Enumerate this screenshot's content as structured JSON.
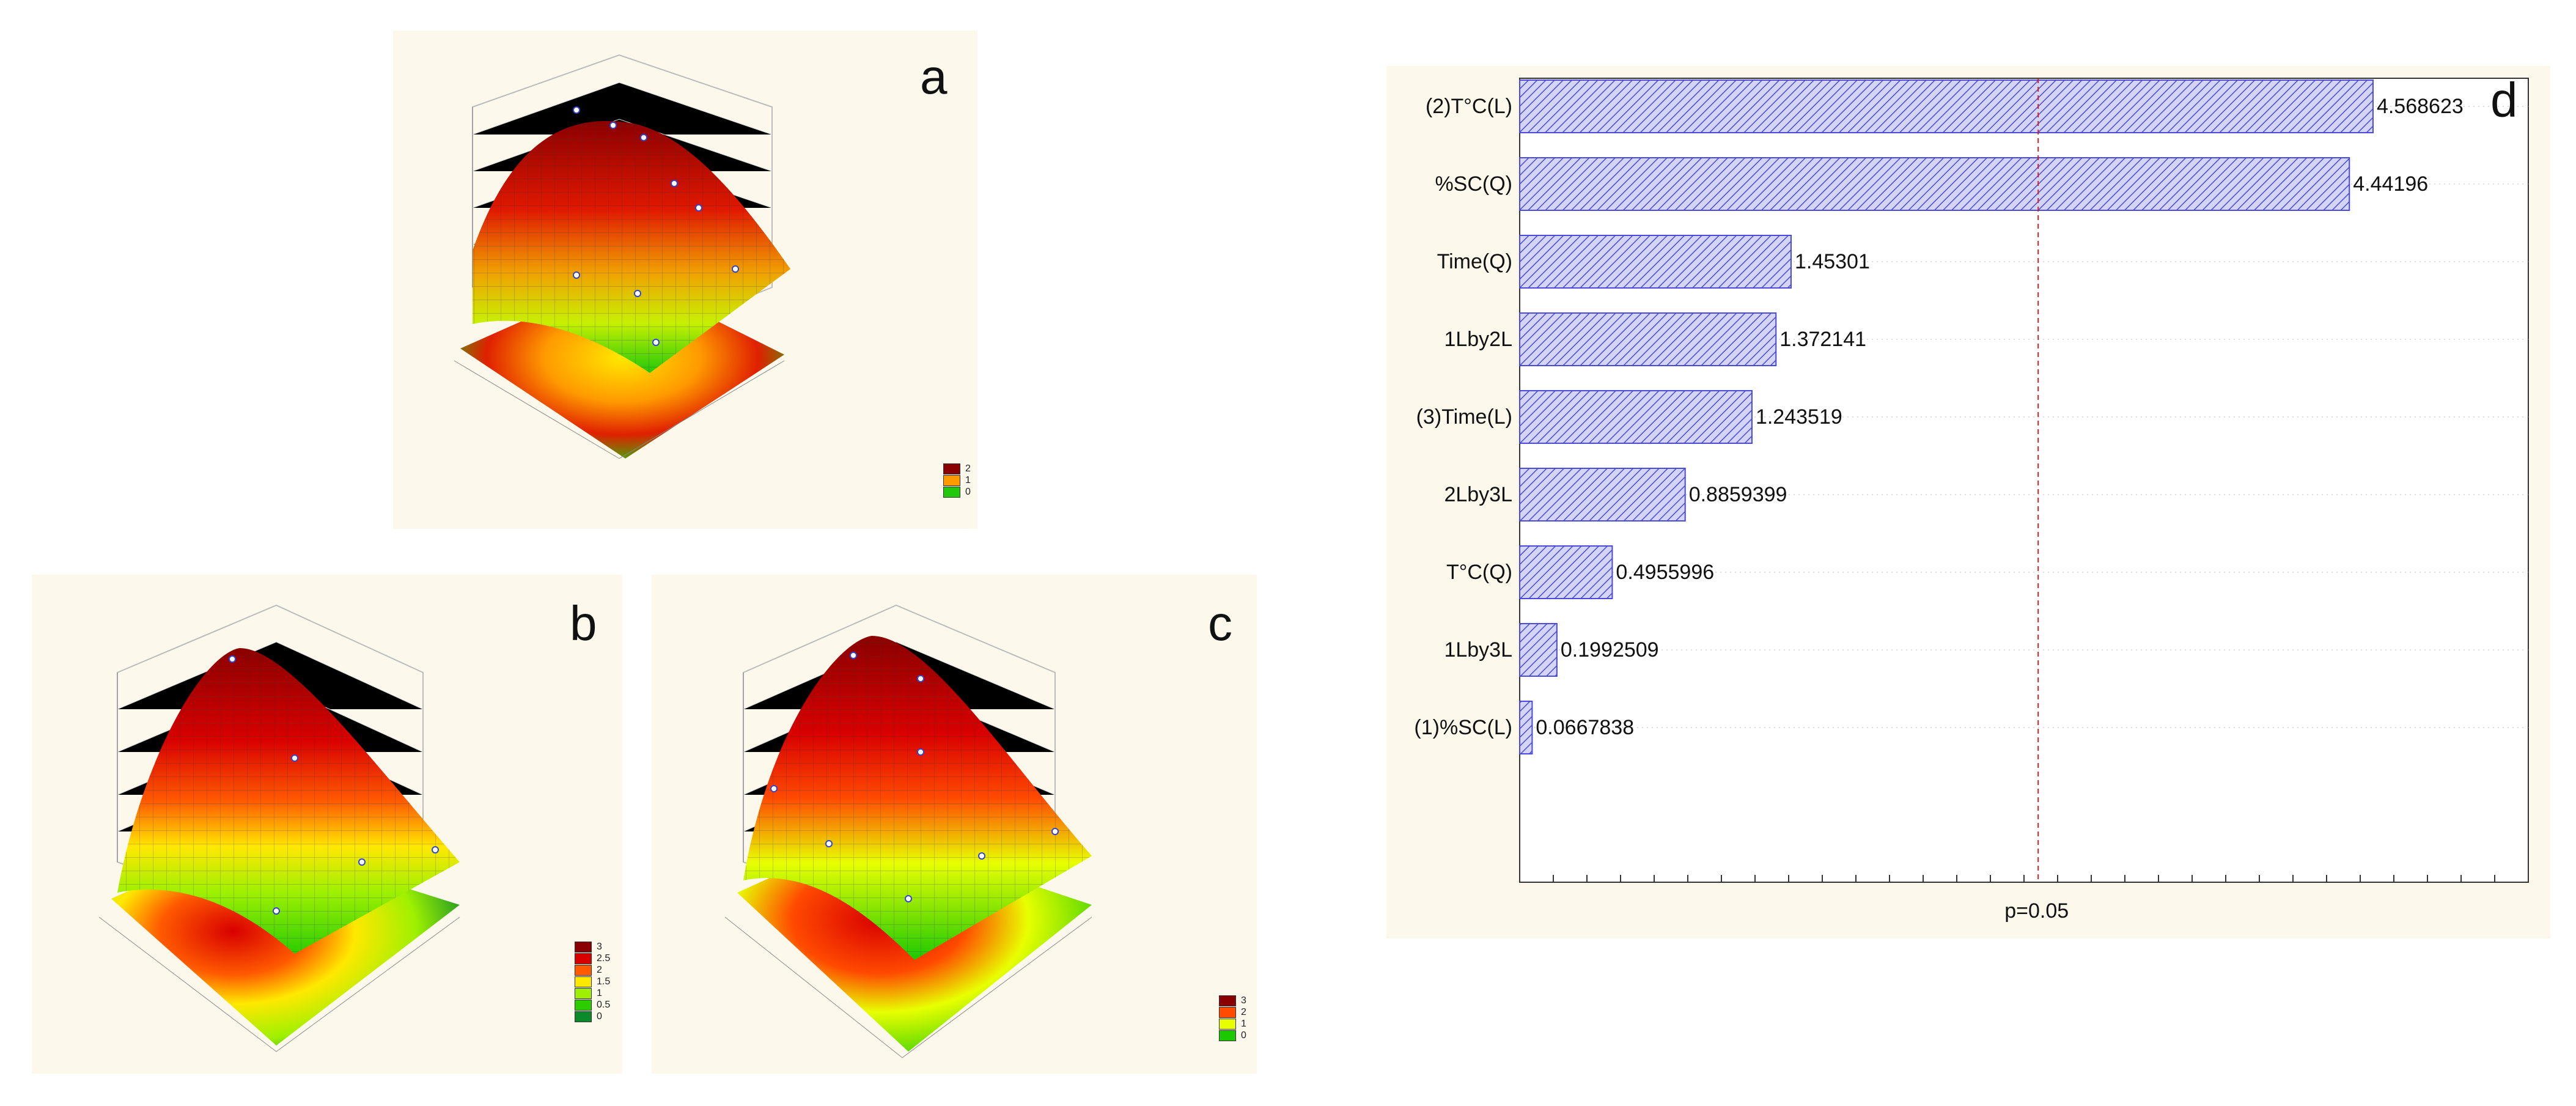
{
  "panels": {
    "a": {
      "letter": "a",
      "legend": [
        {
          "label": "2",
          "color": "#8b0000"
        },
        {
          "label": "1",
          "color": "#ff9a00"
        },
        {
          "label": "0",
          "color": "#22c80a"
        }
      ]
    },
    "b": {
      "letter": "b",
      "legend": [
        {
          "label": "3",
          "color": "#8b0000"
        },
        {
          "label": "2.5",
          "color": "#d80000"
        },
        {
          "label": "2",
          "color": "#ff5a00"
        },
        {
          "label": "1.5",
          "color": "#ffe800"
        },
        {
          "label": "1",
          "color": "#9ef000"
        },
        {
          "label": "0.5",
          "color": "#2ccc00"
        },
        {
          "label": "0",
          "color": "#0a8a2a"
        }
      ]
    },
    "c": {
      "letter": "c",
      "legend": [
        {
          "label": "3",
          "color": "#8b0000"
        },
        {
          "label": "2",
          "color": "#ff4a00"
        },
        {
          "label": "1",
          "color": "#e8ff00"
        },
        {
          "label": "0",
          "color": "#1cc800"
        }
      ]
    }
  },
  "chart_data": {
    "type": "bar",
    "orientation": "horizontal",
    "panel_letter": "d",
    "categories": [
      "(2)T°C(L)",
      "%SC(Q)",
      "Time(Q)",
      "1Lby2L",
      "(3)Time(L)",
      "2Lby3L",
      "T°C(Q)",
      "1Lby3L",
      "(1)%SC(L)"
    ],
    "values": [
      4.568623,
      4.44196,
      1.45301,
      1.372141,
      1.243519,
      0.8859399,
      0.4955996,
      0.1992509,
      0.0667838
    ],
    "value_labels": [
      "4.568623",
      "4.44196",
      "1.45301",
      "1.372141",
      "1.243519",
      "0.8859399",
      "0.4955996",
      "0.1992509",
      "0.0667838"
    ],
    "reference_line": {
      "value": 2.776,
      "label": "p=0.05"
    },
    "xlim": [
      0,
      5.4
    ],
    "bar_color": "#4a4ad8",
    "bar_fill": "#c8c8f4"
  }
}
